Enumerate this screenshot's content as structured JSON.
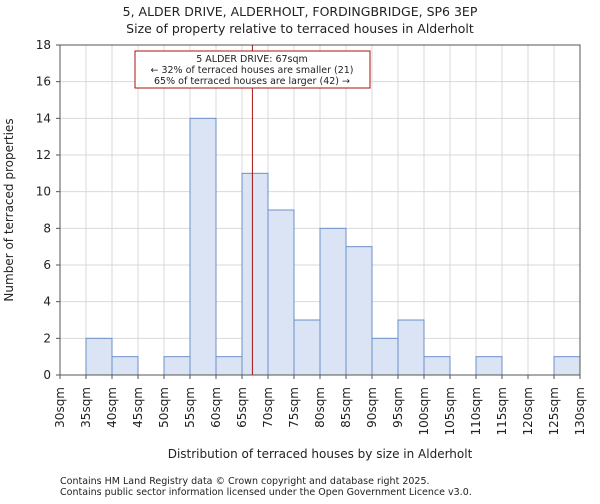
{
  "chart_data": {
    "type": "bar",
    "title_line1": "5, ALDER DRIVE, ALDERHOLT, FORDINGBRIDGE, SP6 3EP",
    "title_line2": "Size of property relative to terraced houses in Alderholt",
    "xlabel": "Distribution of terraced houses by size in Alderholt",
    "ylabel": "Number of terraced properties",
    "bin_edges": [
      30,
      35,
      40,
      45,
      50,
      55,
      60,
      65,
      70,
      75,
      80,
      85,
      90,
      95,
      100,
      105,
      110,
      115,
      120,
      125,
      130
    ],
    "tick_labels": [
      "30sqm",
      "35sqm",
      "40sqm",
      "45sqm",
      "50sqm",
      "55sqm",
      "60sqm",
      "65sqm",
      "70sqm",
      "75sqm",
      "80sqm",
      "85sqm",
      "90sqm",
      "95sqm",
      "100sqm",
      "105sqm",
      "110sqm",
      "115sqm",
      "120sqm",
      "125sqm",
      "130sqm"
    ],
    "values": [
      0,
      2,
      1,
      0,
      1,
      14,
      1,
      11,
      9,
      3,
      8,
      7,
      2,
      3,
      1,
      0,
      1,
      0,
      0,
      1
    ],
    "ylim": [
      0,
      18
    ],
    "yticks": [
      0,
      2,
      4,
      6,
      8,
      10,
      12,
      14,
      16,
      18
    ],
    "marker_value": 67,
    "annotation": {
      "line1": "5 ALDER DRIVE: 67sqm",
      "line2": "← 32% of terraced houses are smaller (21)",
      "line3": "65% of terraced houses are larger (42) →"
    },
    "bar_fill": "#dae4f4",
    "bar_stroke": "#6b8fc9",
    "marker_color": "#aa1111",
    "grid": true
  },
  "footer": {
    "line1": "Contains HM Land Registry data © Crown copyright and database right 2025.",
    "line2": "Contains public sector information licensed under the Open Government Licence v3.0."
  }
}
